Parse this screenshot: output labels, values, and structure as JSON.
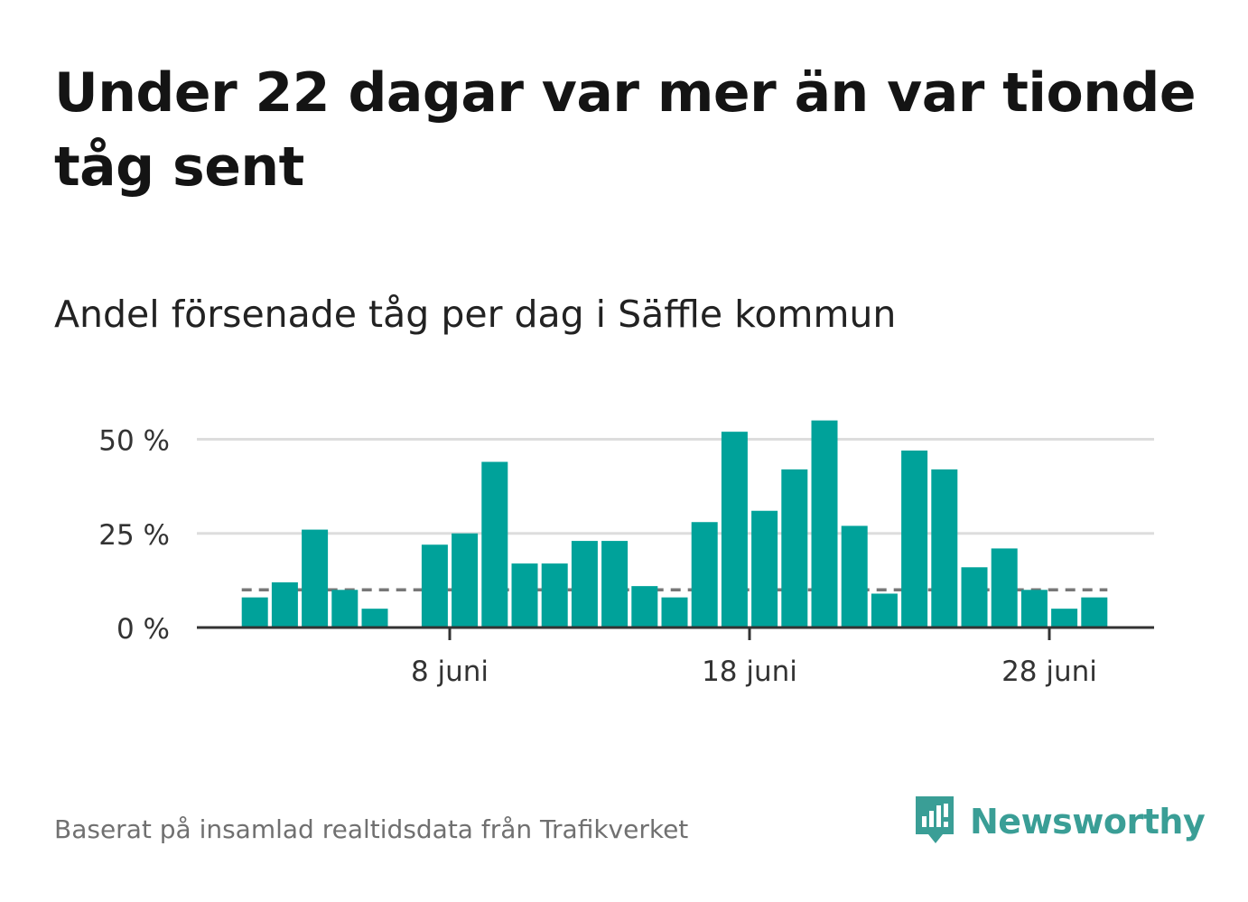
{
  "title": "Under 22 dagar var mer än var tionde tåg sent",
  "subtitle": "Andel försenade tåg per dag i Säffle kommun",
  "source": "Baserat på insamlad realtidsdata från Trafikverket",
  "brand": {
    "name": "Newsworthy",
    "icon": "newsworthy-logo-icon"
  },
  "colors": {
    "bar": "#00a29a",
    "reference_line": "#777777",
    "grid": "#dddddd",
    "axis": "#333333"
  },
  "chart_data": {
    "type": "bar",
    "x_unit": "day of June",
    "x": [
      1,
      2,
      3,
      4,
      5,
      6,
      7,
      8,
      9,
      10,
      11,
      12,
      13,
      14,
      15,
      16,
      17,
      18,
      19,
      20,
      21,
      22,
      23,
      24,
      25,
      26,
      27,
      28,
      29,
      30
    ],
    "values": [
      8,
      12,
      26,
      10,
      5,
      null,
      22,
      25,
      44,
      17,
      17,
      23,
      23,
      11,
      8,
      28,
      52,
      31,
      42,
      55,
      27,
      9,
      47,
      42,
      16,
      21,
      10,
      5,
      8,
      null
    ],
    "y_unit": "%",
    "ylim": [
      0,
      57
    ],
    "yticks": [
      0,
      25,
      50
    ],
    "ytick_labels": [
      "0 %",
      "25 %",
      "50 %"
    ],
    "xticks": [
      8,
      18,
      28
    ],
    "xtick_labels": [
      "8 juni",
      "18 juni",
      "28 juni"
    ],
    "reference_line": {
      "value": 10,
      "style": "dashed"
    },
    "grid": true,
    "legend": false
  }
}
